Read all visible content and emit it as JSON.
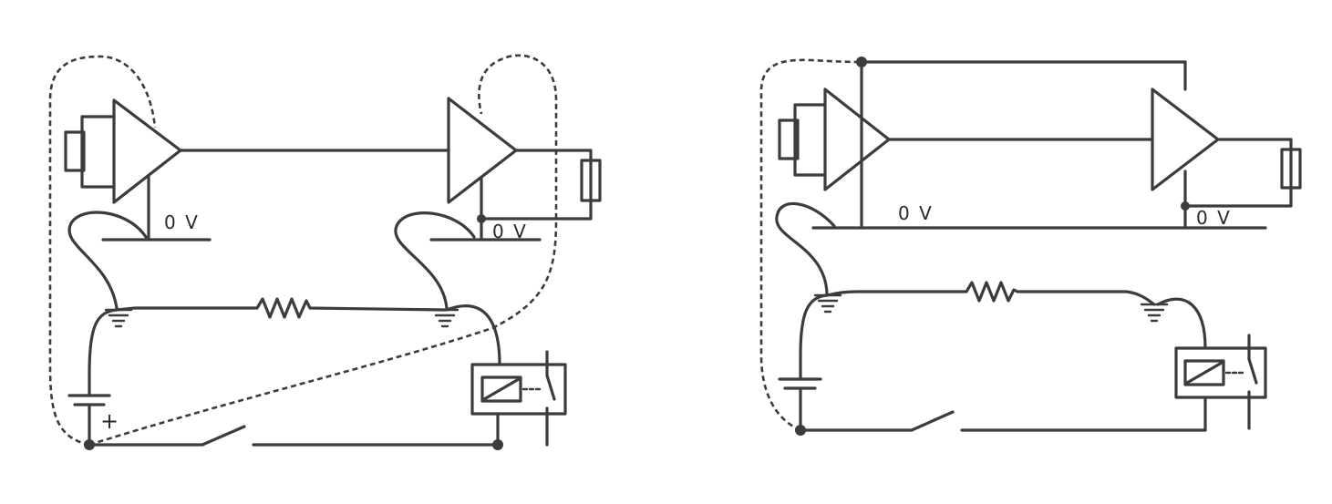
{
  "diagram": {
    "left": {
      "label_0v_a": "0 V",
      "label_0v_b": "0 V",
      "battery_plus": "+"
    },
    "right": {
      "label_0v_a": "0 V",
      "label_0v_b": "0 V"
    }
  }
}
